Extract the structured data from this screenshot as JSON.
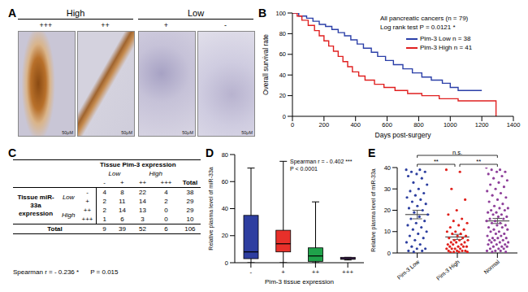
{
  "panel_A": {
    "panel": "A",
    "groups": [
      {
        "label": "High",
        "images": [
          "+++",
          "++"
        ]
      },
      {
        "label": "Low",
        "images": [
          "+",
          "-"
        ]
      }
    ],
    "scale_bar": "50μM"
  },
  "panel_C": {
    "panel": "C",
    "header": "Tissue Pim-3 expression",
    "column_groups": [
      "Low",
      "High"
    ],
    "columns": [
      "-",
      "+",
      "++",
      "+++"
    ],
    "total_label": "Total",
    "row_header": "Tissue miR-33a expression",
    "row_groups": [
      {
        "label": "Low",
        "rows": [
          {
            "label": "-",
            "cells": [
              4,
              8,
              22,
              4
            ],
            "total": 38
          },
          {
            "label": "+",
            "cells": [
              2,
              11,
              14,
              2
            ],
            "total": 29
          }
        ]
      },
      {
        "label": "High",
        "rows": [
          {
            "label": "++",
            "cells": [
              2,
              14,
              13,
              0
            ],
            "total": 29
          },
          {
            "label": "+++",
            "cells": [
              1,
              6,
              3,
              0
            ],
            "total": 10
          }
        ]
      }
    ],
    "totals": [
      9,
      39,
      52,
      6
    ],
    "grand_total": 106,
    "note": "Spearman r = - 0.236 *",
    "p": "P = 0.015"
  },
  "chart_data": [
    {
      "panel": "B",
      "type": "line",
      "title": "All pancreatic cancers (n = 79)",
      "subtitle": "Log rank test P = 0.0121 *",
      "x_label": "Days post-surgery",
      "y_label": "Overall survival rate",
      "xlim": [
        0,
        1400
      ],
      "xticks": [
        0,
        200,
        400,
        600,
        800,
        1000,
        1200,
        1400
      ],
      "ylim": [
        0,
        100
      ],
      "yticks": [
        0,
        20,
        40,
        60,
        80,
        100
      ],
      "line_style": "step",
      "legend": "right",
      "series": [
        {
          "name": "Pim-3 Low n = 38",
          "color": "#2b3fa8",
          "x": [
            0,
            40,
            90,
            130,
            170,
            210,
            250,
            290,
            330,
            370,
            410,
            450,
            500,
            540,
            590,
            640,
            700,
            760,
            820,
            880,
            950,
            1000,
            1050,
            1200
          ],
          "values": [
            100,
            97,
            95,
            92,
            89,
            87,
            84,
            81,
            78,
            74,
            70,
            66,
            62,
            58,
            54,
            50,
            46,
            42,
            38,
            35,
            32,
            28,
            25,
            25
          ]
        },
        {
          "name": "Pim-3 High n = 41",
          "color": "#e02020",
          "x": [
            0,
            30,
            60,
            100,
            140,
            170,
            200,
            230,
            260,
            290,
            320,
            350,
            380,
            420,
            460,
            520,
            580,
            650,
            730,
            820,
            930,
            1050,
            1250,
            1290
          ],
          "values": [
            100,
            97,
            93,
            88,
            83,
            78,
            73,
            68,
            63,
            58,
            53,
            48,
            43,
            39,
            35,
            31,
            28,
            25,
            22,
            20,
            17,
            15,
            15,
            0
          ]
        }
      ]
    },
    {
      "panel": "D",
      "type": "box",
      "x_label": "Pim-3 tissue expression",
      "y_label": "Relative plasma level of miR-33a",
      "categories": [
        "-",
        "+",
        "++",
        "+++"
      ],
      "colors": [
        "#2e3ea0",
        "#e8302a",
        "#1fa24a",
        "#7b3fa0"
      ],
      "min": [
        0,
        0,
        0,
        2
      ],
      "q1": [
        3,
        8,
        1,
        2.5
      ],
      "median": [
        8,
        14,
        5,
        3
      ],
      "q3": [
        35,
        24,
        11,
        4
      ],
      "max": [
        70,
        75,
        45,
        4
      ],
      "ylim": [
        0,
        80
      ],
      "yticks": [
        0,
        20,
        40,
        60,
        80
      ],
      "annotations": [
        "Spearman r = - 0.402 ***",
        "P < 0.0001"
      ]
    },
    {
      "panel": "E",
      "type": "scatter",
      "y_label": "Relative plasma level of miR-33a",
      "categories": [
        "Pim-3 Low",
        "Pim-3 High",
        "Normal"
      ],
      "colors": [
        "#2c3e9f",
        "#e0201b",
        "#8e3f9a"
      ],
      "points": [
        [
          39,
          39,
          38,
          38,
          37,
          36,
          35,
          33,
          32,
          30,
          29,
          28,
          27,
          26,
          25,
          24,
          23,
          22,
          21,
          20,
          19,
          18,
          17,
          16,
          15,
          14,
          13,
          12,
          11,
          10,
          9,
          8,
          7,
          6,
          5,
          4,
          3,
          2,
          2,
          1,
          1,
          0.5
        ],
        [
          39,
          38,
          30,
          25,
          20,
          18,
          16,
          15,
          14,
          13,
          12,
          11,
          10,
          10,
          9,
          9,
          8,
          8,
          7,
          7,
          6,
          6,
          6,
          5,
          5,
          5,
          4,
          4,
          4,
          3,
          3,
          3,
          3,
          2,
          2,
          2,
          2,
          1,
          1,
          1,
          1,
          0.5,
          0.5,
          0.5,
          0.3
        ],
        [
          40,
          39,
          39,
          38,
          38,
          37,
          36,
          35,
          34,
          33,
          32,
          31,
          30,
          29,
          28,
          27,
          26,
          25,
          24,
          23,
          22,
          21,
          21,
          20,
          20,
          19,
          19,
          18,
          18,
          17,
          17,
          16,
          16,
          15,
          15,
          14,
          14,
          13,
          13,
          12,
          12,
          11,
          11,
          10,
          10,
          9,
          9,
          8,
          8,
          7,
          7,
          7,
          6,
          6,
          6,
          5,
          5,
          5,
          4,
          4,
          4,
          3,
          3,
          3,
          2,
          2,
          2,
          1,
          1,
          1,
          0.5,
          0.5
        ]
      ],
      "mean": [
        18,
        7.5,
        15
      ],
      "sem": [
        2,
        1.2,
        1.2
      ],
      "ylim": [
        0,
        40
      ],
      "yticks": [
        0,
        10,
        20,
        30,
        40
      ],
      "annotations": [
        "n.s.",
        "**",
        "**"
      ]
    }
  ]
}
